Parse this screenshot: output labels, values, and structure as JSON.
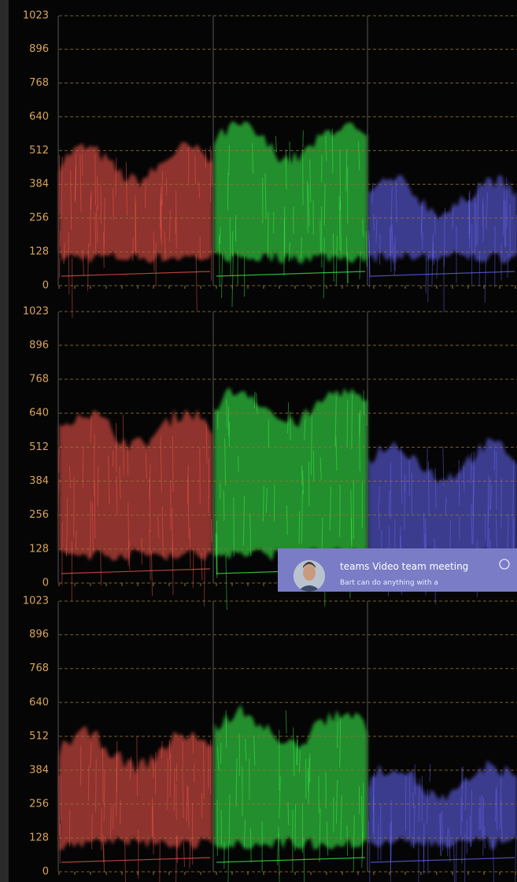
{
  "scopes": [
    {
      "yticks": [
        0,
        128,
        256,
        384,
        512,
        640,
        768,
        896,
        1023
      ]
    },
    {
      "yticks": [
        0,
        128,
        256,
        384,
        512,
        640,
        768,
        896,
        1023
      ]
    },
    {
      "yticks": [
        0,
        128,
        256,
        384,
        512,
        640,
        768,
        896,
        1023
      ]
    }
  ],
  "notification": {
    "title": "teams Video team meeting",
    "body": "Bart can do anything with a"
  }
}
